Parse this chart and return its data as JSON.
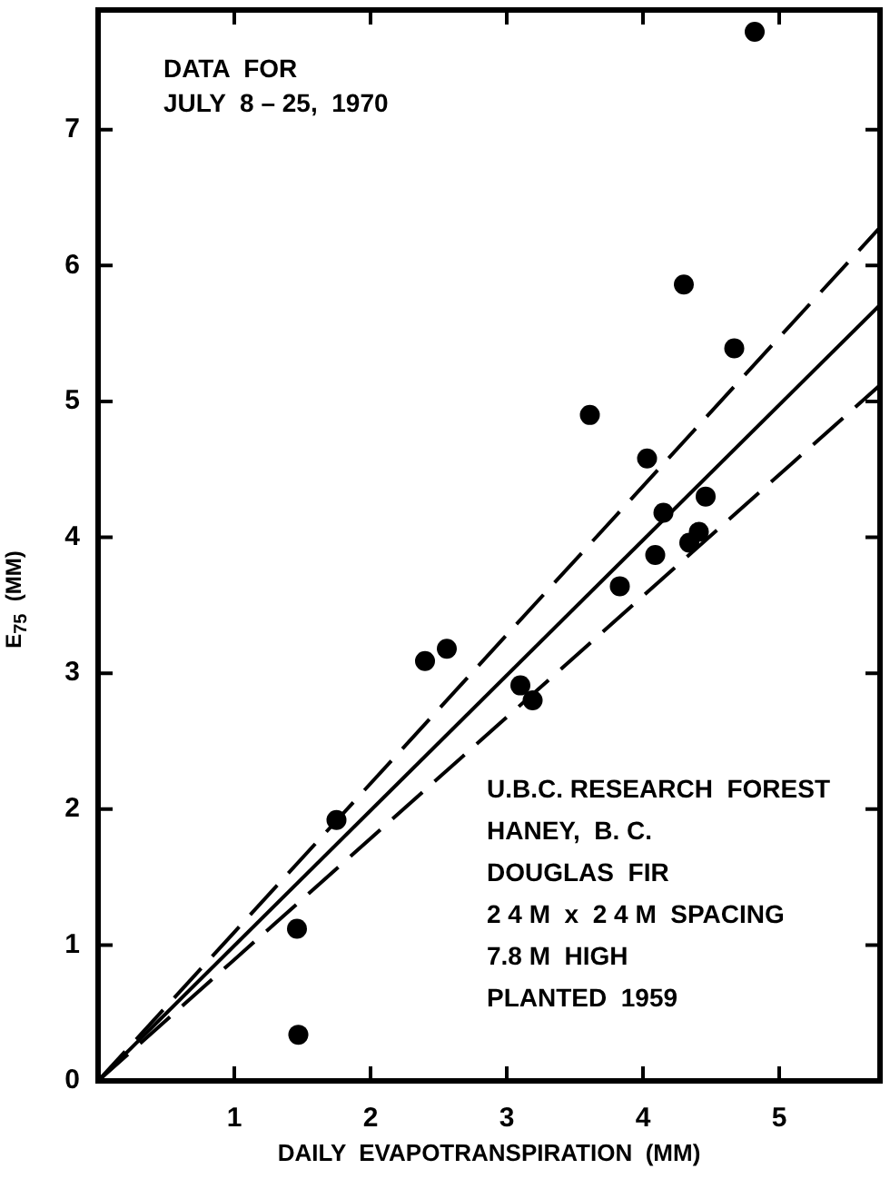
{
  "chart_data": {
    "type": "scatter",
    "xlabel": "DAILY  EVAPOTRANSPIRATION  (MM)",
    "ylabel": "E$_{75}$  (MM)",
    "xlim": [
      0,
      5.74
    ],
    "ylim": [
      0,
      7.88
    ],
    "xticks": [
      {
        "value": 0,
        "label": null
      },
      1,
      2,
      3,
      4,
      5
    ],
    "yticks": [
      0,
      1,
      2,
      3,
      4,
      5,
      6,
      7
    ],
    "grid": false,
    "legend": false,
    "marker": "circle",
    "annotations": [
      "DATA  FOR\nJULY  8 – 25,  1970",
      "U.B.C. RESEARCH  FOREST\nHANEY,  B. C.\nDOUGLAS  FIR\n2 4 M  x  2 4 M  SPACING\n7.8 M  HIGH\nPLANTED  1959"
    ],
    "series": [
      {
        "color": "#000000",
        "x": [
          4.82,
          4.3,
          4.67,
          3.61,
          4.03,
          4.15,
          4.46,
          4.09,
          4.34,
          4.41,
          3.83,
          2.4,
          2.56,
          3.1,
          3.19,
          1.75,
          1.46,
          1.47
        ],
        "values": [
          7.72,
          5.86,
          5.39,
          4.9,
          4.58,
          4.18,
          4.3,
          3.87,
          3.96,
          4.04,
          3.64,
          3.09,
          3.18,
          2.91,
          2.8,
          1.92,
          1.12,
          0.34
        ]
      },
      {
        "type": "line",
        "color": "#000000",
        "line_style": "solid",
        "marker": "none",
        "x": [
          0,
          5.74
        ],
        "values": [
          0,
          5.71
        ]
      },
      {
        "type": "line",
        "color": "#000000",
        "line_style": "dashed",
        "marker": "none",
        "x": [
          0,
          5.74
        ],
        "values": [
          0,
          6.28
        ]
      },
      {
        "type": "line",
        "color": "#000000",
        "line_style": "dashed",
        "marker": "none",
        "x": [
          0,
          5.74
        ],
        "values": [
          0,
          5.12
        ]
      }
    ]
  }
}
